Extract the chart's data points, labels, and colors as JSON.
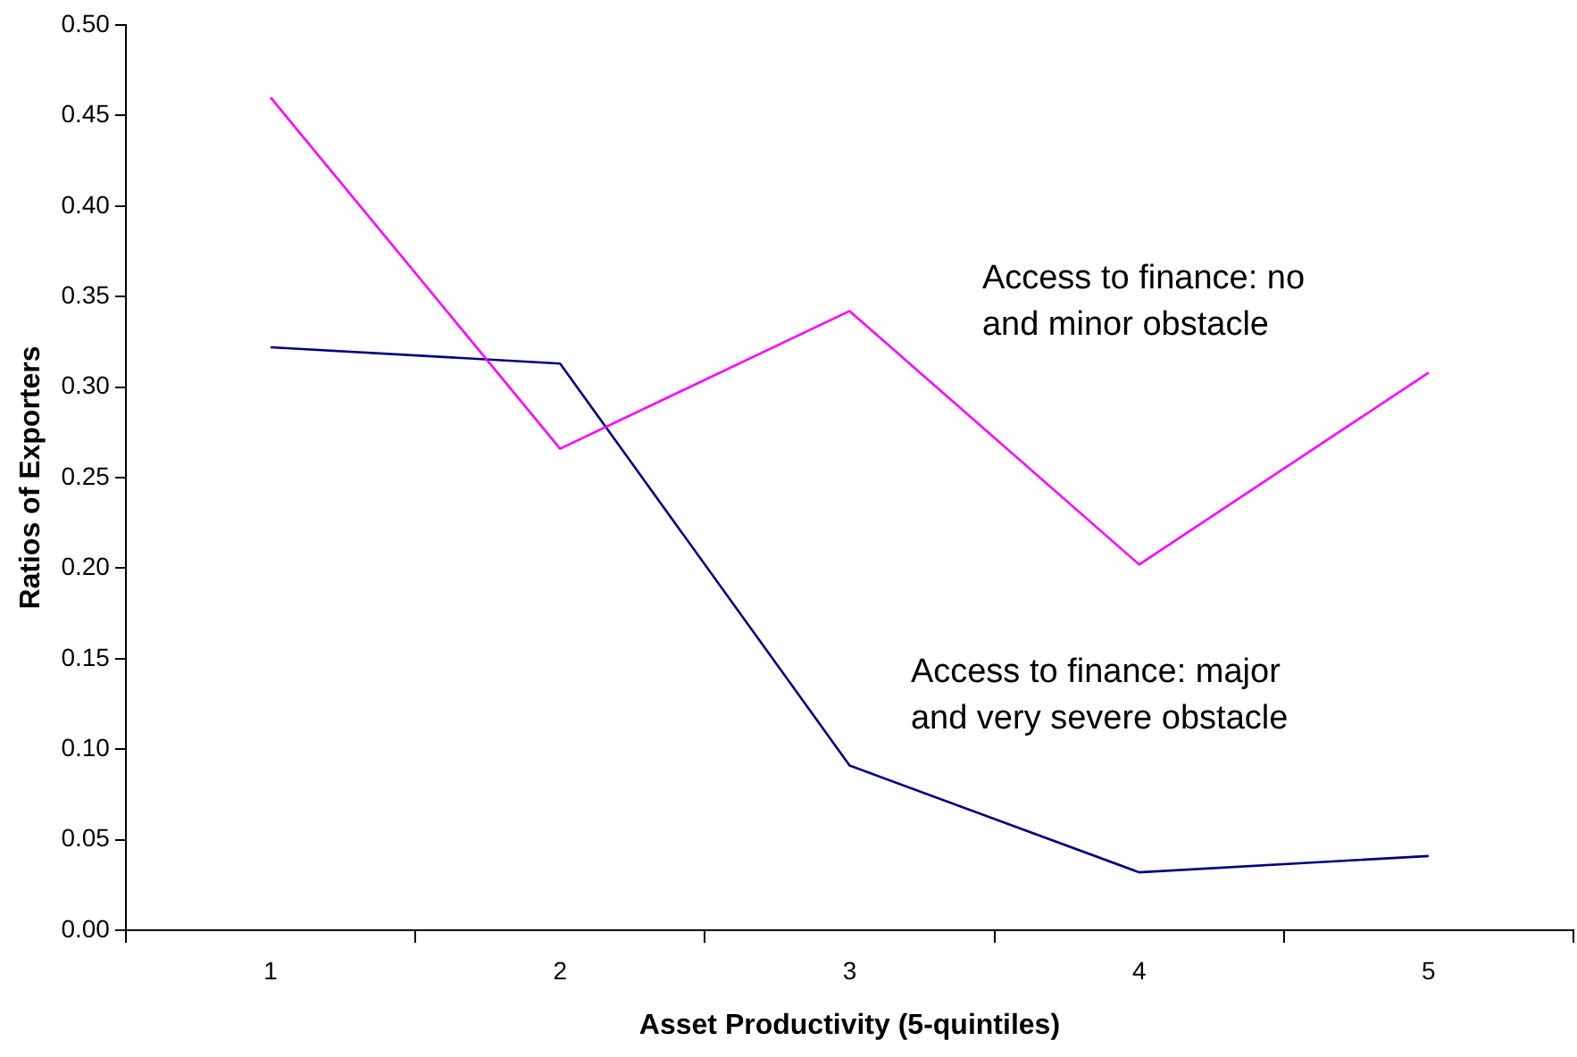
{
  "chart_data": {
    "type": "line",
    "xlabel": "Asset Productivity (5-quintiles)",
    "ylabel": "Ratios of Exporters",
    "categories": [
      "1",
      "2",
      "3",
      "4",
      "5"
    ],
    "series": [
      {
        "name": "Access to finance: no and minor obstacle",
        "color": "#ff00ff",
        "values": [
          0.46,
          0.266,
          0.342,
          0.202,
          0.308
        ]
      },
      {
        "name": "Access to finance: major and very severe obstacle",
        "color": "#000080",
        "values": [
          0.322,
          0.313,
          0.091,
          0.032,
          0.041
        ]
      }
    ],
    "ylim": [
      0,
      0.5
    ],
    "yticks": [
      {
        "value": 0,
        "label": "0.00"
      },
      {
        "value": 0.05,
        "label": "0.05"
      },
      {
        "value": 0.1,
        "label": "0.10"
      },
      {
        "value": 0.15,
        "label": "0.15"
      },
      {
        "value": 0.2,
        "label": "0.20"
      },
      {
        "value": 0.25,
        "label": "0.25"
      },
      {
        "value": 0.3,
        "label": "0.30"
      },
      {
        "value": 0.35,
        "label": "0.35"
      },
      {
        "value": 0.4,
        "label": "0.40"
      },
      {
        "value": 0.45,
        "label": "0.45"
      },
      {
        "value": 0.5,
        "label": "0.50"
      }
    ],
    "grid": false,
    "legend": false,
    "marker": "none",
    "line_style": "solid"
  }
}
